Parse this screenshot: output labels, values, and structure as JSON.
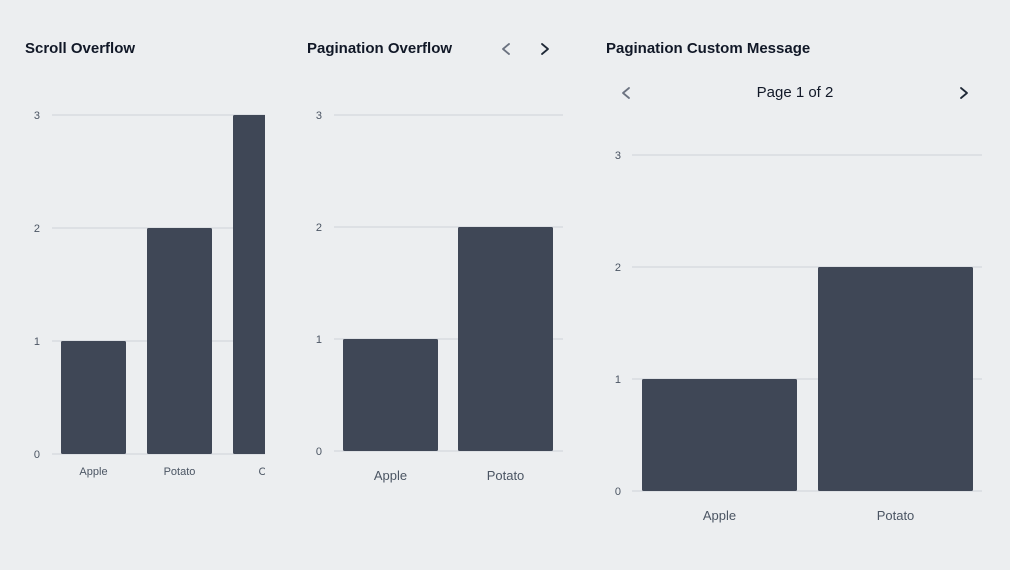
{
  "colors": {
    "bar": "#3f4756",
    "grid": "#d8dbdf",
    "axis_text": "#4b5563",
    "bg": "#eceef0",
    "icon_active": "#1f2937",
    "icon_muted": "#6b7280"
  },
  "panels": [
    {
      "title": "Scroll Overflow"
    },
    {
      "title": "Pagination Overflow",
      "prev_icon": "chevron-left-icon",
      "next_icon": "chevron-right-icon"
    },
    {
      "title": "Pagination Custom Message",
      "page_message": "Page 1 of 2",
      "prev_icon": "chevron-left-icon",
      "next_icon": "chevron-right-icon"
    }
  ],
  "chart_data": [
    {
      "type": "bar",
      "categories": [
        "Apple",
        "Potato",
        "Ca"
      ],
      "values": [
        1,
        2,
        3
      ],
      "ylim": [
        0,
        3
      ],
      "yticks": [
        0,
        1,
        2,
        3
      ],
      "grid": true
    },
    {
      "type": "bar",
      "categories": [
        "Apple",
        "Potato"
      ],
      "values": [
        1,
        2
      ],
      "ylim": [
        0,
        3
      ],
      "yticks": [
        0,
        1,
        2,
        3
      ],
      "grid": true
    },
    {
      "type": "bar",
      "categories": [
        "Apple",
        "Potato"
      ],
      "values": [
        1,
        2
      ],
      "ylim": [
        0,
        3
      ],
      "yticks": [
        0,
        1,
        2,
        3
      ],
      "grid": true
    }
  ]
}
